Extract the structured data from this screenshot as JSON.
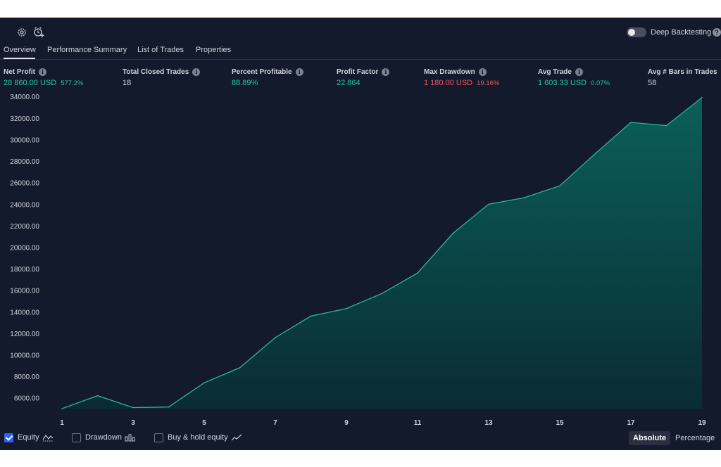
{
  "toolbar": {
    "deep_backtesting_label": "Deep Backtesting",
    "deep_backtesting_enabled": false,
    "help_glyph": "?",
    "icons": [
      "settings-icon",
      "alarm-add-icon"
    ]
  },
  "tabs": [
    {
      "label": "Overview",
      "active": true
    },
    {
      "label": "Performance Summary",
      "active": false
    },
    {
      "label": "List of Trades",
      "active": false
    },
    {
      "label": "Properties",
      "active": false
    }
  ],
  "stats": [
    {
      "title": "Net Profit",
      "value": "28 860.00 USD",
      "pct": "577.2%",
      "tone": "pos"
    },
    {
      "title": "Total Closed Trades",
      "value": "18",
      "pct": "",
      "tone": "neutral"
    },
    {
      "title": "Percent Profitable",
      "value": "88.89%",
      "pct": "",
      "tone": "pos"
    },
    {
      "title": "Profit Factor",
      "value": "22.864",
      "pct": "",
      "tone": "pos"
    },
    {
      "title": "Max Drawdown",
      "value": "1 180.00 USD",
      "pct": "19.16%",
      "tone": "neg"
    },
    {
      "title": "Avg Trade",
      "value": "1 603.33 USD",
      "pct": "0.07%",
      "tone": "pos"
    },
    {
      "title": "Avg # Bars in Trades",
      "value": "58",
      "pct": "",
      "tone": "neutral"
    }
  ],
  "info_glyph": "i",
  "chart_data": {
    "type": "area",
    "title": "",
    "xlabel": "",
    "ylabel": "",
    "x": [
      1,
      2,
      3,
      4,
      5,
      6,
      7,
      8,
      9,
      10,
      11,
      12,
      13,
      14,
      15,
      16,
      17,
      18,
      19
    ],
    "x_ticks": [
      1,
      3,
      5,
      7,
      9,
      11,
      13,
      15,
      17,
      19
    ],
    "series": [
      {
        "values": [
          5000,
          6200,
          5100,
          5150,
          7400,
          8800,
          11600,
          13600,
          14300,
          15700,
          17600,
          21300,
          24000,
          24600,
          25700,
          28700,
          31600,
          31300,
          33900
        ]
      }
    ],
    "ylim": [
      5000,
      34800
    ],
    "y_ticks": [
      6000,
      8000,
      10000,
      12000,
      14000,
      16000,
      18000,
      20000,
      22000,
      24000,
      26000,
      28000,
      30000,
      32000,
      34000
    ],
    "y_tick_labels": [
      "6000.00",
      "8000.00",
      "10000.00",
      "12000.00",
      "14000.00",
      "16000.00",
      "18000.00",
      "20000.00",
      "22000.00",
      "24000.00",
      "26000.00",
      "28000.00",
      "30000.00",
      "32000.00",
      "34000.00"
    ],
    "grid": false,
    "colors": {
      "line": "#2bb5a3",
      "fill_top": "#0b5f5a",
      "fill_bottom": "#0a2c33"
    }
  },
  "footer": {
    "equity_label": "Equity",
    "equity_checked": true,
    "drawdown_label": "Drawdown",
    "drawdown_checked": false,
    "buyhold_label": "Buy & hold equity",
    "buyhold_checked": false,
    "absolute_label": "Absolute",
    "percentage_label": "Percentage",
    "mode": "Absolute"
  },
  "colors": {
    "background": "#131a2b",
    "positive": "#26c6a6",
    "negative": "#f05663",
    "accent": "#2962ff"
  }
}
